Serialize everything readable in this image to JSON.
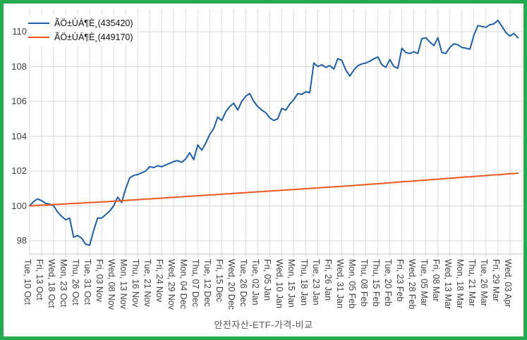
{
  "frame": {
    "border_color": "#23ab4f",
    "background": "#ffffff"
  },
  "title": "안전자산-ETF-가격-비교",
  "legend": {
    "items": [
      {
        "label": "ÃÖ±ÙÁ¶È¸(435420)",
        "color": "#1b5fad"
      },
      {
        "label": "ÃÖ±ÙÁ¶È¸(449170)",
        "color": "#ed561e"
      }
    ]
  },
  "chart_data": {
    "type": "line",
    "title": "안전자산-ETF-가격-비교",
    "xlabel": "",
    "ylabel": "",
    "ylim": [
      96.8,
      111.5
    ],
    "yticks": [
      98,
      100,
      102,
      104,
      106,
      108,
      110
    ],
    "grid": true,
    "legend_position": "top-left",
    "grid_color": "#d9d9d9",
    "axis_color": "#c6c6c6",
    "tick_label_color": "#404040",
    "points_per_tick": 3,
    "categories": [
      "Tue, 10 Oct",
      "Fri, 13 Oct",
      "Wed, 18 Oct",
      "Mon, 23 Oct",
      "Thu, 26 Oct",
      "Tue, 31 Oct",
      "Fri, 03 Nov",
      "Wed, 08 Nov",
      "Mon, 13 Nov",
      "Thu, 16 Nov",
      "Tue, 21 Nov",
      "Fri, 24 Nov",
      "Wed, 29 Nov",
      "Mon, 04 Dec",
      "Thu, 07 Dec",
      "Tue, 12 Dec",
      "Fri, 15 Dec",
      "Wed, 20 Dec",
      "Tue, 26 Dec",
      "Tue, 02 Jan",
      "Fri, 05 Jan",
      "Wed, 10 Jan",
      "Mon, 15 Jan",
      "Thu, 18 Jan",
      "Tue, 23 Jan",
      "Fri, 26 Jan",
      "Wed, 31 Jan",
      "Mon, 05 Feb",
      "Thu, 08 Feb",
      "Thu, 15 Feb",
      "Tue, 20 Feb",
      "Fri, 23 Feb",
      "Wed, 28 Feb",
      "Tue, 05 Mar",
      "Fri, 08 Mar",
      "Wed, 13 Mar",
      "Mon, 18 Mar",
      "Thu, 21 Mar",
      "Tue, 26 Mar",
      "Fri, 29 Mar",
      "Wed, 03 Apr"
    ],
    "series": [
      {
        "name": "ÃÖ±ÙÁ¶È¸(435420)",
        "color": "#1b5fad",
        "values": [
          100,
          100.25,
          100.4,
          100.3,
          100.15,
          100.1,
          100,
          99.65,
          99.4,
          99.2,
          99.3,
          98.2,
          98.3,
          98.15,
          97.8,
          97.75,
          98.6,
          99.3,
          99.3,
          99.5,
          99.7,
          100,
          100.5,
          100.2,
          101,
          101.6,
          101.75,
          101.8,
          101.9,
          102,
          102.25,
          102.2,
          102.3,
          102.25,
          102.35,
          102.45,
          102.55,
          102.6,
          102.5,
          102.7,
          103.05,
          102.65,
          103.5,
          103.2,
          103.6,
          104.1,
          104.45,
          105.1,
          104.9,
          105.4,
          105.7,
          105.9,
          105.5,
          106,
          106.3,
          106.45,
          106,
          105.7,
          105.5,
          105.35,
          105.05,
          104.9,
          105,
          105.6,
          105.5,
          105.85,
          106.1,
          106.45,
          106.4,
          106.55,
          106.5,
          108.2,
          108,
          108.1,
          107.95,
          108.05,
          107.85,
          108.45,
          108.35,
          107.8,
          107.45,
          107.8,
          108.05,
          108.15,
          108.2,
          108.3,
          108.45,
          108.55,
          108.1,
          107.95,
          108.4,
          108,
          107.9,
          109.05,
          108.8,
          108.75,
          108.85,
          108.75,
          109.6,
          109.65,
          109.4,
          109.2,
          109.65,
          108.8,
          108.75,
          109.1,
          109.3,
          109.25,
          109.1,
          109.05,
          109,
          109.8,
          110.35,
          110.3,
          110.25,
          110.4,
          110.45,
          110.65,
          110.3,
          109.95,
          109.75,
          109.9,
          109.65
        ]
      },
      {
        "name": "ÃÖ±ÙÁ¶È¸(449170)",
        "color": "#ed561e",
        "values": [
          100,
          100.01,
          100.03,
          100.04,
          100.05,
          100.06,
          100.08,
          100.09,
          100.1,
          100.11,
          100.13,
          100.14,
          100.15,
          100.16,
          100.18,
          100.19,
          100.2,
          100.21,
          100.23,
          100.24,
          100.25,
          100.27,
          100.28,
          100.3,
          100.31,
          100.33,
          100.34,
          100.36,
          100.37,
          100.39,
          100.4,
          100.42,
          100.43,
          100.45,
          100.46,
          100.48,
          100.49,
          100.51,
          100.52,
          100.54,
          100.55,
          100.57,
          100.58,
          100.6,
          100.61,
          100.63,
          100.64,
          100.66,
          100.67,
          100.69,
          100.7,
          100.72,
          100.73,
          100.75,
          100.76,
          100.78,
          100.79,
          100.81,
          100.82,
          100.84,
          100.85,
          100.87,
          100.88,
          100.9,
          100.91,
          100.93,
          100.94,
          100.96,
          100.97,
          100.99,
          101,
          101.02,
          101.03,
          101.05,
          101.06,
          101.08,
          101.09,
          101.11,
          101.12,
          101.14,
          101.15,
          101.17,
          101.19,
          101.2,
          101.22,
          101.24,
          101.26,
          101.27,
          101.29,
          101.31,
          101.33,
          101.34,
          101.36,
          101.38,
          101.4,
          101.41,
          101.43,
          101.45,
          101.47,
          101.48,
          101.5,
          101.52,
          101.53,
          101.55,
          101.57,
          101.59,
          101.6,
          101.62,
          101.64,
          101.66,
          101.67,
          101.69,
          101.71,
          101.72,
          101.74,
          101.76,
          101.78,
          101.79,
          101.81,
          101.83,
          101.85,
          101.86,
          101.88
        ]
      }
    ]
  }
}
